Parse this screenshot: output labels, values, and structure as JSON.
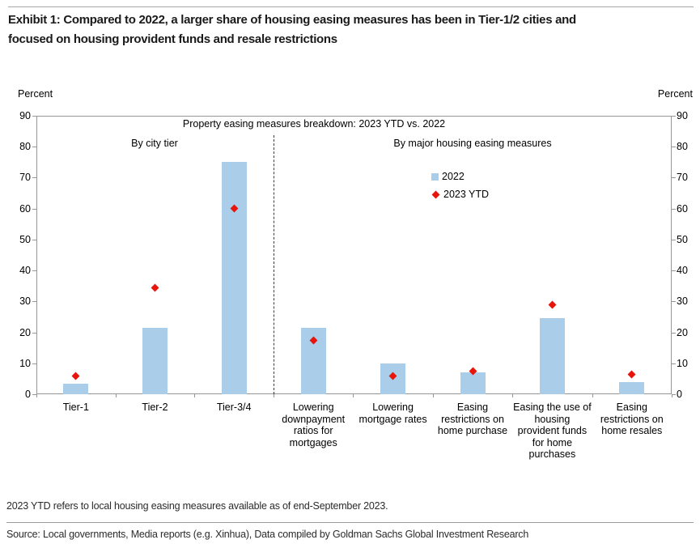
{
  "header": {
    "title_lines": [
      "Exhibit 1: Compared to 2022, a larger share of housing easing measures has been in Tier-1/2 cities and",
      "focused on housing provident funds and resale restrictions"
    ]
  },
  "chart_data": {
    "type": "bar",
    "title": "Property easing measures breakdown: 2023 YTD vs. 2022",
    "ylabel_left": "Percent",
    "ylabel_right": "Percent",
    "ylim": [
      0,
      90
    ],
    "yticks": [
      0,
      10,
      20,
      30,
      40,
      50,
      60,
      70,
      80,
      90
    ],
    "grid": false,
    "legend_position": "inside-top-center",
    "sections": [
      {
        "label": "By city tier",
        "categories": [
          "Tier-1",
          "Tier-2",
          "Tier-3/4"
        ]
      },
      {
        "label": "By major housing easing measures",
        "categories": [
          "Lowering downpayment ratios for mortgages",
          "Lowering mortgage rates",
          "Easing restrictions on home purchase",
          "Easing the use of housing provident funds for home purchases",
          "Easing restrictions on home resales"
        ]
      }
    ],
    "series": [
      {
        "name": "2022",
        "type": "bar",
        "color": "#aacee9",
        "values": [
          3.5,
          21.5,
          75,
          21.5,
          10,
          7,
          24.5,
          4
        ]
      },
      {
        "name": "2023 YTD",
        "type": "diamond",
        "color": "#e8150d",
        "values": [
          6,
          34.5,
          60,
          17.5,
          6,
          7.5,
          29,
          6.5
        ]
      }
    ]
  },
  "footer": {
    "footnote": "2023 YTD refers to local housing easing measures available as of end-September 2023.",
    "source": "Source: Local governments, Media reports (e.g. Xinhua), Data compiled by Goldman Sachs Global Investment Research"
  }
}
